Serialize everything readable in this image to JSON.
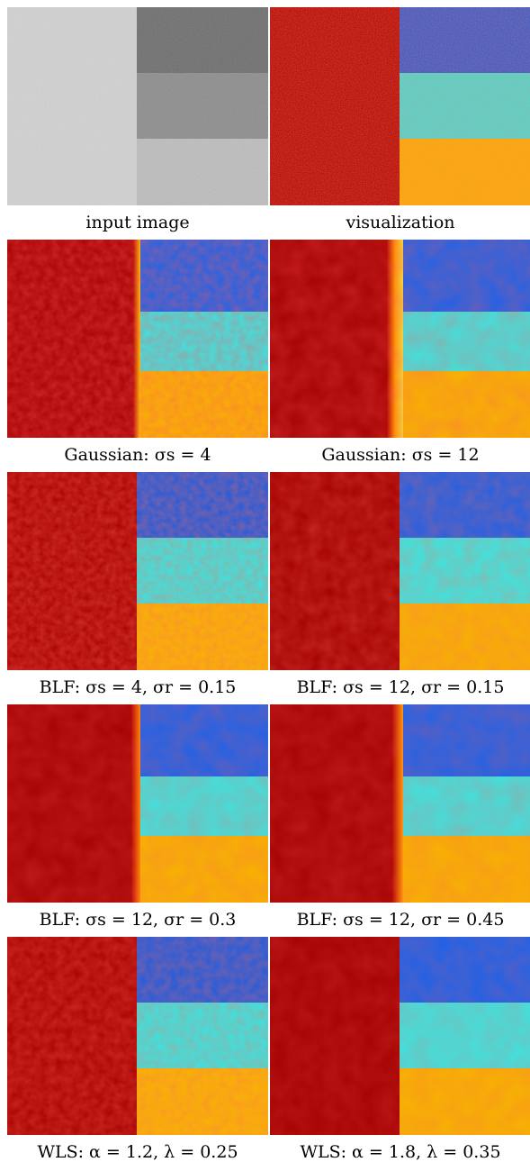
{
  "figure": {
    "panels": [
      {
        "caption": "input image",
        "style": "gray"
      },
      {
        "caption": "visualization",
        "style": "viz"
      },
      {
        "caption": "Gaussian: σs = 4",
        "style": "smooth4"
      },
      {
        "caption": "Gaussian: σs = 12",
        "style": "smooth12"
      },
      {
        "caption": "BLF: σs = 4, σr = 0.15",
        "style": "blf"
      },
      {
        "caption": "BLF: σs = 12, σr = 0.15",
        "style": "blf"
      },
      {
        "caption": "BLF: σs = 12, σr = 0.3",
        "style": "blf"
      },
      {
        "caption": "BLF: σs = 12, σr = 0.45",
        "style": "blf"
      },
      {
        "caption": "WLS: α = 1.2, λ = 0.25",
        "style": "wls"
      },
      {
        "caption": "WLS: α = 1.8, λ = 0.35",
        "style": "wls"
      }
    ],
    "colors": {
      "gray_left": "#d2d2d2",
      "gray_top_right": "#6d6d6d",
      "gray_mid_right": "#8c8c8c",
      "gray_bot_right": "#bdbdbd",
      "viz_left": "#a80000",
      "viz_top_right": "#1c5be0",
      "viz_mid_right": "#33e8e6",
      "viz_bot_right": "#f7b600"
    }
  }
}
